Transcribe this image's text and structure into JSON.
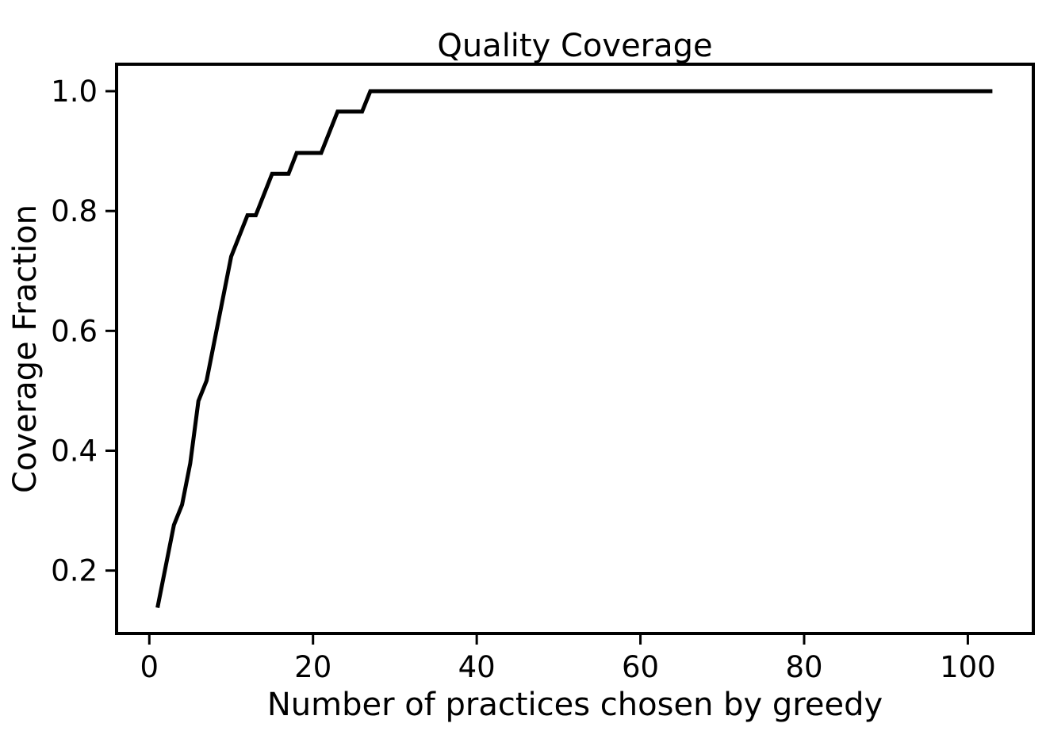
{
  "chart_data": {
    "type": "line",
    "title": "Quality Coverage",
    "xlabel": "Number of practices chosen by greedy",
    "ylabel": "Coverage Fraction",
    "xlim": [
      -4,
      108
    ],
    "ylim": [
      0.095,
      1.045
    ],
    "xticks": [
      0,
      20,
      40,
      60,
      80,
      100
    ],
    "yticks": [
      0.2,
      0.4,
      0.6,
      0.8,
      1.0
    ],
    "xtick_labels": [
      "0",
      "20",
      "40",
      "60",
      "80",
      "100"
    ],
    "ytick_labels": [
      "0.2",
      "0.4",
      "0.6",
      "0.8",
      "1.0"
    ],
    "grid": false,
    "line_color": "#000000",
    "series": [
      {
        "x": [
          1,
          3,
          4,
          5,
          6,
          7,
          10,
          12,
          13,
          15,
          17,
          18,
          21,
          23,
          26,
          27,
          103
        ],
        "y": [
          0.138,
          0.276,
          0.31,
          0.379,
          0.483,
          0.517,
          0.724,
          0.793,
          0.793,
          0.862,
          0.862,
          0.897,
          0.897,
          0.966,
          0.966,
          1.0,
          1.0
        ]
      }
    ]
  }
}
